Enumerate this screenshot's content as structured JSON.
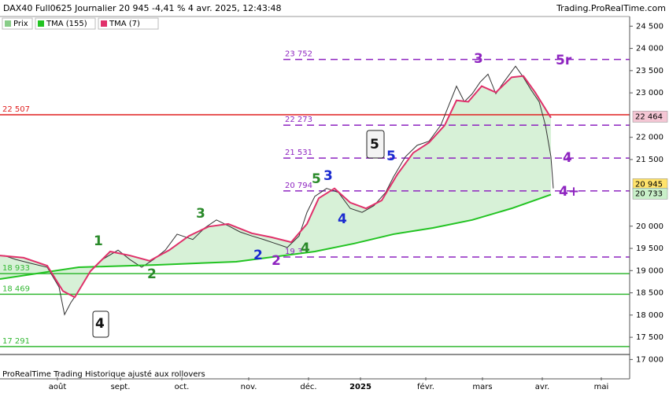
{
  "header": {
    "title": "DAX40 Full0625 Journalier 20 945 -4,41 % 4 avr. 2025, 12:43:48",
    "site": "Trading.ProRealTime.com"
  },
  "footer": "ProRealTime Trading  Historique ajusté aux rollovers",
  "chart_data": {
    "type": "line",
    "xlim": [
      0,
      800
    ],
    "ylim": [
      16600,
      24700
    ],
    "xticks": [
      {
        "value": 73,
        "label": "août"
      },
      {
        "value": 153,
        "label": "sept."
      },
      {
        "value": 231,
        "label": "oct."
      },
      {
        "value": 316,
        "label": "nov."
      },
      {
        "value": 392,
        "label": "déc."
      },
      {
        "value": 458,
        "label": "2025"
      },
      {
        "value": 541,
        "label": "févr."
      },
      {
        "value": 613,
        "label": "mars"
      },
      {
        "value": 689,
        "label": "avr."
      },
      {
        "value": 764,
        "label": "mai"
      }
    ],
    "yticks": [
      {
        "value": 24500,
        "label": "24 500"
      },
      {
        "value": 24000,
        "label": "24 000"
      },
      {
        "value": 23500,
        "label": "23 500"
      },
      {
        "value": 23000,
        "label": "23 000"
      },
      {
        "value": 22000,
        "label": "22 000"
      },
      {
        "value": 21500,
        "label": "21 500"
      },
      {
        "value": 20000,
        "label": "20 000"
      },
      {
        "value": 19500,
        "label": "19 500"
      },
      {
        "value": 19000,
        "label": "19 000"
      },
      {
        "value": 18500,
        "label": "18 500"
      },
      {
        "value": 18000,
        "label": "18 000"
      },
      {
        "value": 17500,
        "label": "17 500"
      },
      {
        "value": 17000,
        "label": "17 000"
      }
    ],
    "series": [
      {
        "name": "Prix",
        "color": "#333333",
        "x": [
          5,
          20,
          40,
          60,
          75,
          82,
          90,
          100,
          115,
          130,
          150,
          165,
          180,
          195,
          210,
          225,
          245,
          260,
          275,
          290,
          305,
          320,
          335,
          350,
          365,
          380,
          390,
          400,
          415,
          430,
          445,
          460,
          475,
          490,
          500,
          515,
          530,
          545,
          560,
          570,
          580,
          590,
          600,
          610,
          620,
          630,
          640,
          655,
          665,
          675,
          685,
          693,
          700,
          703
        ],
        "values": [
          19340,
          19250,
          19160,
          19075,
          18630,
          18010,
          18280,
          18540,
          18990,
          19250,
          19460,
          19250,
          19075,
          19250,
          19460,
          19820,
          19700,
          19960,
          20140,
          20010,
          19870,
          19780,
          19700,
          19610,
          19520,
          19780,
          20310,
          20670,
          20850,
          20760,
          20400,
          20310,
          20460,
          20760,
          21110,
          21560,
          21820,
          21910,
          22270,
          22710,
          23150,
          22800,
          22980,
          23240,
          23420,
          22980,
          23240,
          23600,
          23350,
          23060,
          22800,
          22270,
          21560,
          20850
        ]
      },
      {
        "name": "TMA (155)",
        "color": "#22c322",
        "x": [
          0,
          100,
          200,
          300,
          400,
          450,
          500,
          550,
          600,
          650,
          700
        ],
        "values": [
          18810,
          19075,
          19130,
          19200,
          19430,
          19610,
          19820,
          19960,
          20140,
          20400,
          20710
        ]
      },
      {
        "name": "TMA (7)",
        "color": "#e0306a",
        "x": [
          0,
          30,
          60,
          80,
          95,
          115,
          140,
          165,
          190,
          215,
          240,
          265,
          290,
          320,
          345,
          370,
          390,
          405,
          425,
          445,
          465,
          485,
          505,
          525,
          545,
          565,
          580,
          595,
          612,
          630,
          650,
          665,
          680,
          700
        ],
        "values": [
          19340,
          19290,
          19110,
          18540,
          18400,
          18990,
          19430,
          19340,
          19220,
          19460,
          19780,
          19990,
          20050,
          19840,
          19750,
          19640,
          20050,
          20630,
          20850,
          20530,
          20400,
          20580,
          21170,
          21650,
          21880,
          22270,
          22830,
          22800,
          23150,
          23010,
          23350,
          23380,
          23010,
          22440
        ]
      }
    ],
    "levels": [
      {
        "value": 22507,
        "label": "22 507",
        "color": "#e02020",
        "style": "solid"
      },
      {
        "value": 18933,
        "label": "18 933",
        "color": "#33b833",
        "style": "solid"
      },
      {
        "value": 18469,
        "label": "18 469",
        "color": "#33b833",
        "style": "solid"
      },
      {
        "value": 17291,
        "label": "17 291",
        "color": "#33b833",
        "style": "solid"
      },
      {
        "value": 23752,
        "label": "23 752",
        "color": "#8e24c0",
        "style": "dashed"
      },
      {
        "value": 22273,
        "label": "22 273",
        "color": "#8e24c0",
        "style": "dashed"
      },
      {
        "value": 21531,
        "label": "21 531",
        "color": "#8e24c0",
        "style": "dashed"
      },
      {
        "value": 20794,
        "label": "20 794",
        "color": "#8e24c0",
        "style": "dashed"
      },
      {
        "value": 19305,
        "label": "19 3",
        "color": "#8e24c0",
        "style": "dashed"
      }
    ],
    "price_badges": [
      {
        "value": 22464,
        "label": "22 464",
        "color": "#f4c6d4"
      },
      {
        "value": 20945,
        "label": "20 945",
        "color": "#ffe36b"
      },
      {
        "value": 20733,
        "label": "20 733",
        "color": "#c9efc9"
      }
    ],
    "annotations": [
      "1",
      "2",
      "3",
      "4",
      "2",
      "4",
      "5",
      "3",
      "4",
      "2",
      "5",
      "5",
      "3",
      "5r",
      "4",
      "4+"
    ]
  }
}
